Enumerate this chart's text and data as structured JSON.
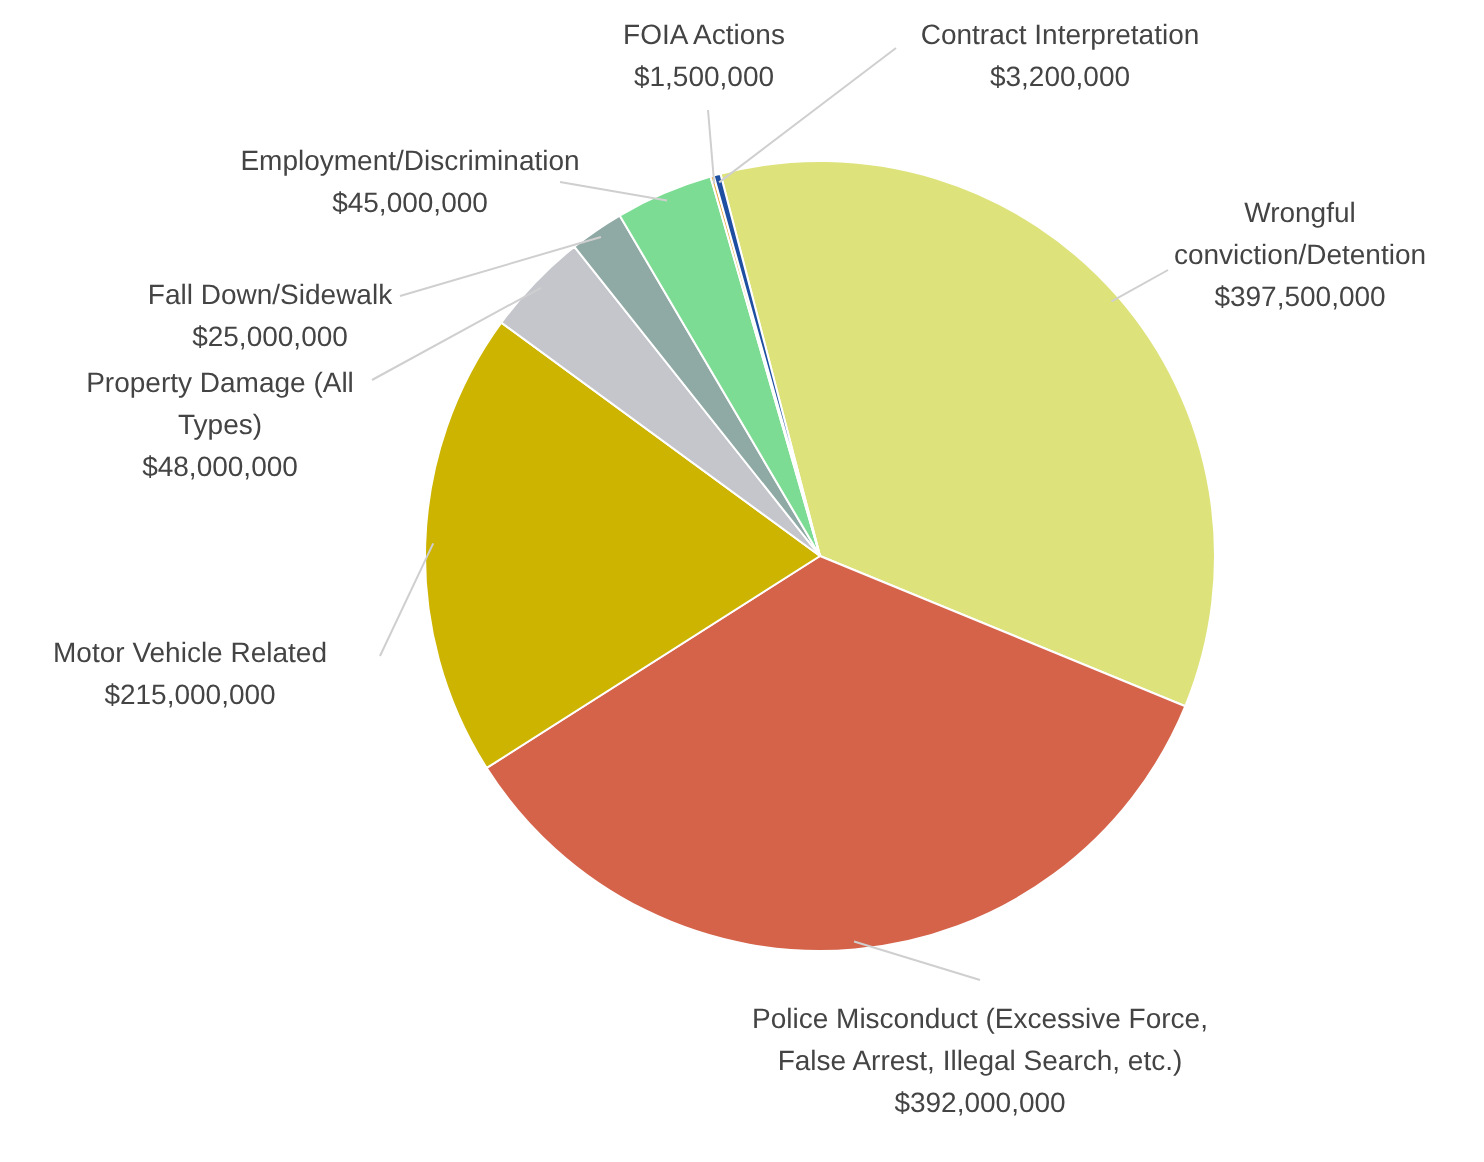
{
  "chart_data": {
    "type": "pie",
    "categories": [
      "Wrongful conviction/Detention",
      "Police Misconduct (Excessive Force, False Arrest, Illegal Search, etc.)",
      "Motor Vehicle Related",
      "Property Damage (All Types)",
      "Fall Down/Sidewalk",
      "Employment/Discrimination",
      "FOIA Actions",
      "Contract Interpretation"
    ],
    "values": [
      397500000,
      392000000,
      215000000,
      48000000,
      25000000,
      45000000,
      1500000,
      3200000
    ],
    "colors": [
      "#dde27a",
      "#d4634a",
      "#cdb400",
      "#c4c6cc",
      "#8fa9a4",
      "#7ddc94",
      "#e8b04a",
      "#1f4fa0"
    ],
    "value_labels": [
      "$397,500,000",
      "$392,000,000",
      "$215,000,000",
      "$48,000,000",
      "$25,000,000",
      "$45,000,000",
      "$1,500,000",
      "$3,200,000"
    ],
    "legend": false
  }
}
